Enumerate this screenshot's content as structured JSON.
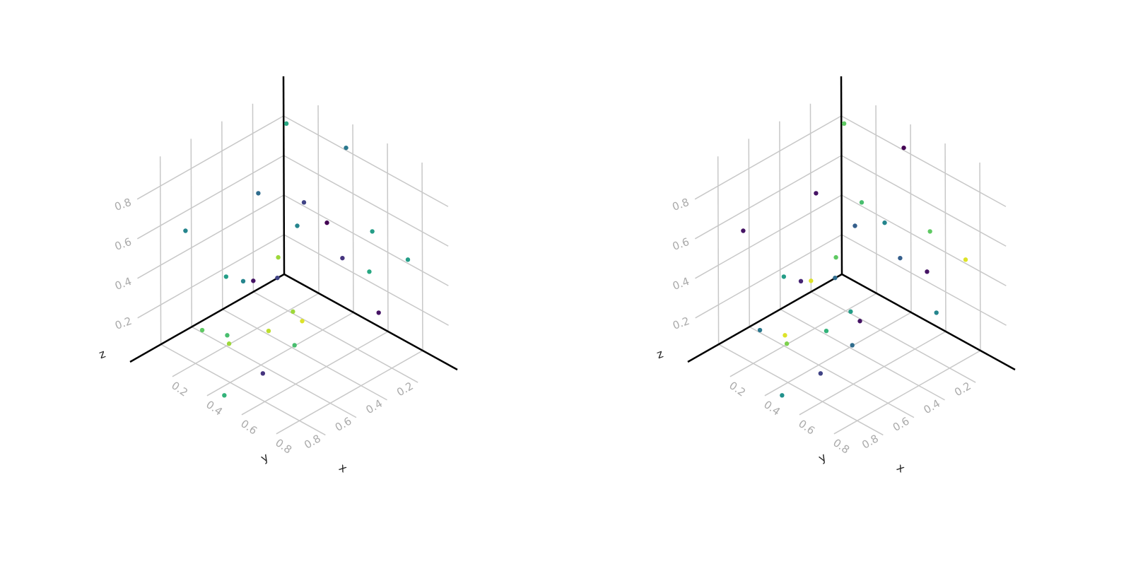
{
  "colors": {
    "viridis": [
      "#440154",
      "#472d7b",
      "#3b528b",
      "#2c728e",
      "#21918c",
      "#28ae80",
      "#5ec962",
      "#addc30",
      "#fde725"
    ]
  },
  "chart_data": [
    {
      "type": "scatter3d",
      "xlabel": "x",
      "ylabel": "y",
      "zlabel": "z",
      "xticks": [
        "0.2",
        "0.4",
        "0.6",
        "0.8"
      ],
      "yticks": [
        "0.2",
        "0.4",
        "0.6",
        "0.8"
      ],
      "zticks": [
        "0.2",
        "0.4",
        "0.6",
        "0.8"
      ],
      "xlim": [
        0,
        1
      ],
      "ylim": [
        0,
        1
      ],
      "zlim": [
        0,
        1
      ],
      "grid": true,
      "points": [
        {
          "x": 0.15,
          "y": 0.15,
          "z": 0.9,
          "c": 0.6
        },
        {
          "x": 0.45,
          "y": 0.1,
          "z": 0.9,
          "c": 0.4
        },
        {
          "x": 0.3,
          "y": 0.25,
          "z": 0.5,
          "c": 0.45
        },
        {
          "x": 0.12,
          "y": 0.3,
          "z": 0.6,
          "c": 0.35
        },
        {
          "x": 0.25,
          "y": 0.15,
          "z": 0.55,
          "c": 0.2
        },
        {
          "x": 0.32,
          "y": 0.08,
          "z": 0.45,
          "c": 0.0
        },
        {
          "x": 0.6,
          "y": 0.1,
          "z": 0.55,
          "c": 0.55
        },
        {
          "x": 0.65,
          "y": 0.35,
          "z": 0.55,
          "c": 0.15
        },
        {
          "x": 0.85,
          "y": 0.15,
          "z": 0.55,
          "c": 0.55
        },
        {
          "x": 0.85,
          "y": 0.4,
          "z": 0.6,
          "c": 0.6
        },
        {
          "x": 0.1,
          "y": 0.15,
          "z": 0.2,
          "c": 0.85
        },
        {
          "x": 0.1,
          "y": 0.75,
          "z": 0.6,
          "c": 0.45
        },
        {
          "x": 0.05,
          "y": 0.1,
          "z": 0.05,
          "c": 0.2
        },
        {
          "x": 0.12,
          "y": 0.4,
          "z": 0.2,
          "c": 0.45
        },
        {
          "x": 0.25,
          "y": 0.48,
          "z": 0.3,
          "c": 0.05
        },
        {
          "x": 0.2,
          "y": 0.6,
          "z": 0.35,
          "c": 0.55
        },
        {
          "x": 0.68,
          "y": 0.15,
          "z": 0.2,
          "c": 0.05
        },
        {
          "x": 0.3,
          "y": 0.28,
          "z": 0.08,
          "c": 0.85
        },
        {
          "x": 0.25,
          "y": 0.65,
          "z": 0.1,
          "c": 0.7
        },
        {
          "x": 0.15,
          "y": 0.7,
          "z": 0.1,
          "c": 0.75
        },
        {
          "x": 0.4,
          "y": 0.55,
          "z": 0.15,
          "c": 0.9
        },
        {
          "x": 0.55,
          "y": 0.5,
          "z": 0.25,
          "c": 0.95
        },
        {
          "x": 0.55,
          "y": 0.55,
          "z": 0.15,
          "c": 0.7
        },
        {
          "x": 0.35,
          "y": 0.75,
          "z": 0.15,
          "c": 0.85
        },
        {
          "x": 0.5,
          "y": 0.7,
          "z": 0.05,
          "c": 0.15
        },
        {
          "x": 0.5,
          "y": 0.95,
          "z": 0.05,
          "c": 0.65
        }
      ]
    },
    {
      "type": "scatter3d",
      "xlabel": "x",
      "ylabel": "y",
      "zlabel": "z",
      "xticks": [
        "0.2",
        "0.4",
        "0.6",
        "0.8"
      ],
      "yticks": [
        "0.2",
        "0.4",
        "0.6",
        "0.8"
      ],
      "zticks": [
        "0.2",
        "0.4",
        "0.6",
        "0.8"
      ],
      "xlim": [
        0,
        1
      ],
      "ylim": [
        0,
        1
      ],
      "zlim": [
        0,
        1
      ],
      "grid": true,
      "points": [
        {
          "x": 0.15,
          "y": 0.15,
          "z": 0.9,
          "c": 0.75
        },
        {
          "x": 0.45,
          "y": 0.1,
          "z": 0.9,
          "c": 0.0
        },
        {
          "x": 0.3,
          "y": 0.25,
          "z": 0.5,
          "c": 0.3
        },
        {
          "x": 0.12,
          "y": 0.3,
          "z": 0.6,
          "c": 0.05
        },
        {
          "x": 0.25,
          "y": 0.15,
          "z": 0.55,
          "c": 0.7
        },
        {
          "x": 0.32,
          "y": 0.08,
          "z": 0.45,
          "c": 0.45
        },
        {
          "x": 0.6,
          "y": 0.1,
          "z": 0.55,
          "c": 0.75
        },
        {
          "x": 0.65,
          "y": 0.35,
          "z": 0.55,
          "c": 0.3
        },
        {
          "x": 0.85,
          "y": 0.15,
          "z": 0.55,
          "c": 0.95
        },
        {
          "x": 0.85,
          "y": 0.4,
          "z": 0.6,
          "c": 0.05
        },
        {
          "x": 0.1,
          "y": 0.15,
          "z": 0.2,
          "c": 0.75
        },
        {
          "x": 0.1,
          "y": 0.75,
          "z": 0.6,
          "c": 0.05
        },
        {
          "x": 0.05,
          "y": 0.1,
          "z": 0.05,
          "c": 0.35
        },
        {
          "x": 0.12,
          "y": 0.4,
          "z": 0.2,
          "c": 0.1
        },
        {
          "x": 0.25,
          "y": 0.48,
          "z": 0.3,
          "c": 0.95
        },
        {
          "x": 0.2,
          "y": 0.6,
          "z": 0.35,
          "c": 0.55
        },
        {
          "x": 0.68,
          "y": 0.15,
          "z": 0.2,
          "c": 0.45
        },
        {
          "x": 0.3,
          "y": 0.28,
          "z": 0.08,
          "c": 0.55
        },
        {
          "x": 0.25,
          "y": 0.65,
          "z": 0.1,
          "c": 0.95
        },
        {
          "x": 0.15,
          "y": 0.7,
          "z": 0.1,
          "c": 0.4
        },
        {
          "x": 0.4,
          "y": 0.55,
          "z": 0.15,
          "c": 0.65
        },
        {
          "x": 0.55,
          "y": 0.5,
          "z": 0.25,
          "c": 0.05
        },
        {
          "x": 0.55,
          "y": 0.55,
          "z": 0.15,
          "c": 0.35
        },
        {
          "x": 0.35,
          "y": 0.75,
          "z": 0.15,
          "c": 0.8
        },
        {
          "x": 0.5,
          "y": 0.7,
          "z": 0.05,
          "c": 0.2
        },
        {
          "x": 0.5,
          "y": 0.95,
          "z": 0.05,
          "c": 0.5
        }
      ]
    }
  ]
}
